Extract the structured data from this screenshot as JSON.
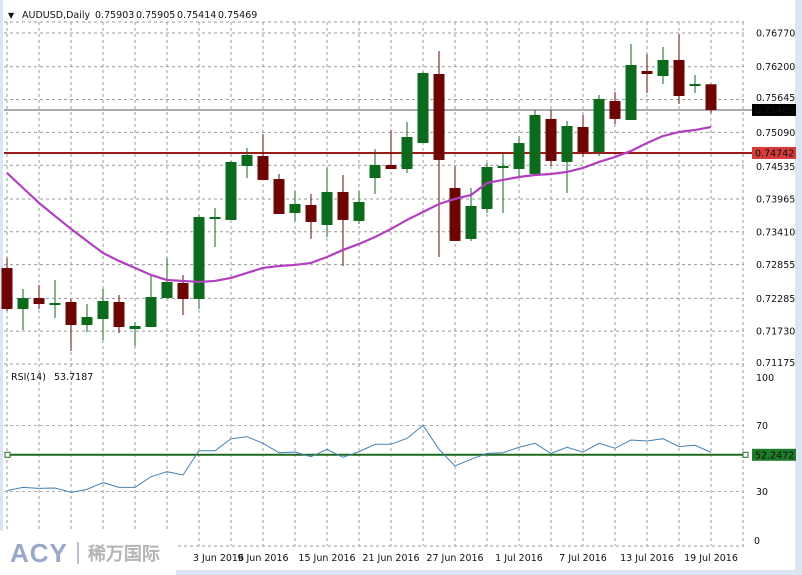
{
  "header": {
    "arrow": "▼",
    "symbol": "AUDUSD,Daily",
    "open": "0.75903",
    "high": "0.75905",
    "low": "0.75414",
    "close": "0.75469"
  },
  "colors": {
    "bull": "#0b6a1c",
    "bear": "#6e0505",
    "ma": "#b23fc0",
    "rsi": "#4682b4",
    "grid": "#9a9a9a",
    "price_line": "#555566",
    "level_line": "#9b1b1b",
    "rsi_level_line": "#1f6a1f"
  },
  "chart_data": [
    {
      "type": "candlestick",
      "title": "AUDUSD,Daily",
      "ylim": [
        0.71175,
        0.7677
      ],
      "yticks": [
        "0.76770",
        "0.76200",
        "0.75645",
        "0.75090",
        "0.74535",
        "0.73965",
        "0.73410",
        "0.72855",
        "0.72285",
        "0.71730",
        "0.71175"
      ],
      "xticks": [
        {
          "bar": 13,
          "label": "3 Jun 2016"
        },
        {
          "bar": 17,
          "label": "9 Jun 2016"
        },
        {
          "bar": 21,
          "label": "15 Jun 2016"
        },
        {
          "bar": 25,
          "label": "21 Jun 2016"
        },
        {
          "bar": 29,
          "label": "27 Jun 2016"
        },
        {
          "bar": 33,
          "label": "1 Jul 2016"
        },
        {
          "bar": 37,
          "label": "7 Jul 2016"
        },
        {
          "bar": 41,
          "label": "13 Jul 2016"
        },
        {
          "bar": 45,
          "label": "19 Jul 2016"
        }
      ],
      "ohlc": [
        [
          0.72797,
          0.72966,
          0.72071,
          0.72105
        ],
        [
          0.72105,
          0.72442,
          0.71749,
          0.7229
        ],
        [
          0.7229,
          0.7251,
          0.72105,
          0.72189
        ],
        [
          0.72206,
          0.72595,
          0.71952,
          0.72206
        ],
        [
          0.72223,
          0.72274,
          0.71395,
          0.71834
        ],
        [
          0.71834,
          0.72189,
          0.71716,
          0.71969
        ],
        [
          0.71935,
          0.72442,
          0.71581,
          0.7224
        ],
        [
          0.72223,
          0.72341,
          0.71699,
          0.718
        ],
        [
          0.71766,
          0.71885,
          0.71479,
          0.71817
        ],
        [
          0.718,
          0.72662,
          0.718,
          0.72307
        ],
        [
          0.7229,
          0.72966,
          0.7229,
          0.72561
        ],
        [
          0.72544,
          0.72679,
          0.72003,
          0.72274
        ],
        [
          0.72274,
          0.73694,
          0.72105,
          0.7366
        ],
        [
          0.73626,
          0.73812,
          0.73153,
          0.7366
        ],
        [
          0.7361,
          0.74607,
          0.7361,
          0.7459
        ],
        [
          0.74522,
          0.74825,
          0.74319,
          0.74708
        ],
        [
          0.74691,
          0.75063,
          0.74286,
          0.74286
        ],
        [
          0.74302,
          0.74387,
          0.73711,
          0.73711
        ],
        [
          0.73728,
          0.741,
          0.73593,
          0.7388
        ],
        [
          0.73863,
          0.74049,
          0.73289,
          0.73576
        ],
        [
          0.73525,
          0.74488,
          0.73322,
          0.74083
        ],
        [
          0.74083,
          0.7437,
          0.72831,
          0.7361
        ],
        [
          0.73593,
          0.741,
          0.73542,
          0.73914
        ],
        [
          0.74319,
          0.74808,
          0.74049,
          0.74539
        ],
        [
          0.74539,
          0.7513,
          0.74471,
          0.74471
        ],
        [
          0.74471,
          0.75266,
          0.74404,
          0.75012
        ],
        [
          0.7491,
          0.76111,
          0.7491,
          0.76094
        ],
        [
          0.76077,
          0.76466,
          0.72983,
          0.74624
        ],
        [
          0.7415,
          0.74522,
          0.73255,
          0.73255
        ],
        [
          0.73289,
          0.7415,
          0.73255,
          0.73846
        ],
        [
          0.73795,
          0.74573,
          0.73728,
          0.74505
        ],
        [
          0.74505,
          0.74725,
          0.73728,
          0.74522
        ],
        [
          0.74471,
          0.75029,
          0.74336,
          0.7491
        ],
        [
          0.74387,
          0.75469,
          0.74387,
          0.75384
        ],
        [
          0.75317,
          0.75469,
          0.74522,
          0.74607
        ],
        [
          0.7459,
          0.75283,
          0.74066,
          0.75198
        ],
        [
          0.75181,
          0.75384,
          0.74674,
          0.74759
        ],
        [
          0.74759,
          0.75722,
          0.74691,
          0.75655
        ],
        [
          0.75621,
          0.75773,
          0.75232,
          0.75317
        ],
        [
          0.753,
          0.76584,
          0.753,
          0.76229
        ],
        [
          0.76128,
          0.76415,
          0.75756,
          0.76077
        ],
        [
          0.76043,
          0.76533,
          0.75908,
          0.76314
        ],
        [
          0.76314,
          0.76753,
          0.7557,
          0.75705
        ],
        [
          0.75908,
          0.7606,
          0.75756,
          0.75908
        ],
        [
          0.75903,
          0.75905,
          0.75414,
          0.75469
        ]
      ],
      "moving_average": [
        0.74404,
        0.7415,
        0.73897,
        0.73677,
        0.73458,
        0.73255,
        0.73052,
        0.72917,
        0.72799,
        0.7268,
        0.72595,
        0.72579,
        0.72562,
        0.72579,
        0.7263,
        0.72714,
        0.72799,
        0.72832,
        0.72849,
        0.72883,
        0.72984,
        0.73103,
        0.73204,
        0.73322,
        0.73458,
        0.7361,
        0.73745,
        0.7388,
        0.73965,
        0.74032,
        0.74235,
        0.74286,
        0.74336,
        0.7437,
        0.74387,
        0.74421,
        0.74488,
        0.7459,
        0.74674,
        0.74776,
        0.7491,
        0.75029,
        0.75097,
        0.7513,
        0.75181
      ],
      "current_price": "0.75469",
      "horizontal_level": "0.74742"
    },
    {
      "type": "line",
      "title": "RSI(14)",
      "value_label": "53.7187",
      "ylim": [
        0,
        100
      ],
      "yticks": [
        "100",
        "70",
        "30",
        "0"
      ],
      "values": [
        30.5,
        32.5,
        31.9,
        32.1,
        29.5,
        31.3,
        35.4,
        32.5,
        32.5,
        39.0,
        42.0,
        40.0,
        54.7,
        54.7,
        62.0,
        63.2,
        59.2,
        53.5,
        53.9,
        51.1,
        55.6,
        50.7,
        54.1,
        58.6,
        58.6,
        62.2,
        70.1,
        55.6,
        45.5,
        49.5,
        53.1,
        53.5,
        56.8,
        59.2,
        53.1,
        56.8,
        53.9,
        59.2,
        56.2,
        61.2,
        60.6,
        62.0,
        57.2,
        58.0,
        53.72
      ],
      "horizontal_level": "52.2472"
    }
  ],
  "watermark": {
    "brand": "ACY",
    "chinese": "稀万国际"
  }
}
